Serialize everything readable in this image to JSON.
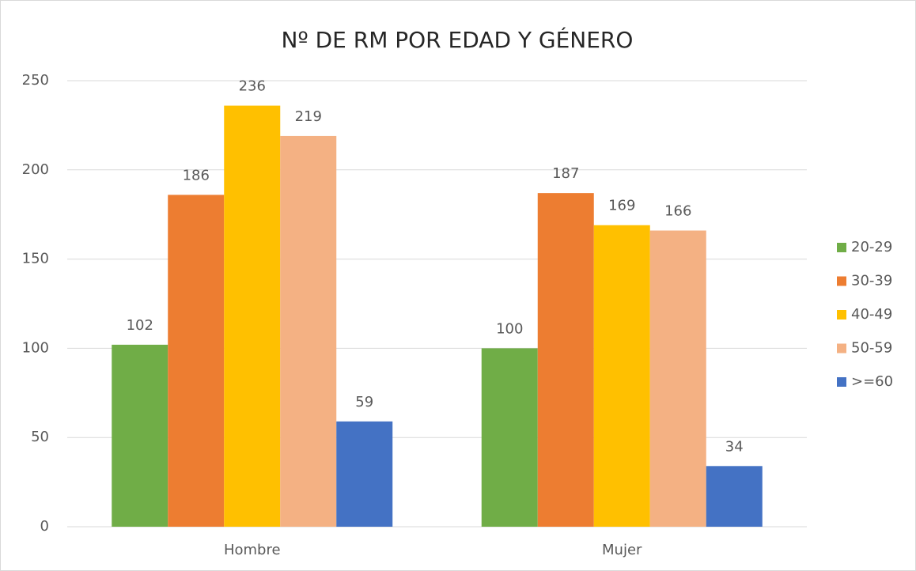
{
  "chart_data": {
    "type": "bar",
    "title": "Nº DE RM POR EDAD Y GÉNERO",
    "categories": [
      "Hombre",
      "Mujer"
    ],
    "series": [
      {
        "name": "20-29",
        "color": "#70ad47",
        "values": [
          102,
          100
        ]
      },
      {
        "name": "30-39",
        "color": "#ed7d31",
        "values": [
          186,
          187
        ]
      },
      {
        "name": "40-49",
        "color": "#ffc000",
        "values": [
          236,
          169
        ]
      },
      {
        "name": "50-59",
        "color": "#f4b183",
        "values": [
          219,
          166
        ]
      },
      {
        "name": ">=60",
        "color": "#4472c4",
        "values": [
          59,
          34
        ]
      }
    ],
    "ylim": [
      0,
      250
    ],
    "yticks": [
      0,
      50,
      100,
      150,
      200,
      250
    ],
    "grid": true,
    "legend": "right"
  }
}
